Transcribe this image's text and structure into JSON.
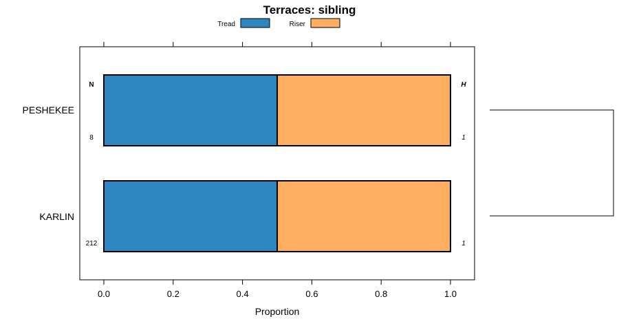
{
  "chart_data": {
    "type": "bar",
    "orientation": "horizontal",
    "stacked": true,
    "title": "Terraces: sibling",
    "xlabel": "Proportion",
    "ylabel": "",
    "xlim": [
      0,
      1
    ],
    "x_ticks": [
      "0.0",
      "0.2",
      "0.4",
      "0.6",
      "0.8",
      "1.0"
    ],
    "categories": [
      "PESHEKEE",
      "KARLIN"
    ],
    "series": [
      {
        "name": "Tread",
        "values": [
          0.5,
          0.5
        ],
        "color": "#2e86c1"
      },
      {
        "name": "Riser",
        "values": [
          0.5,
          0.5
        ],
        "color": "#fdae61"
      }
    ],
    "legend_position": "top",
    "n_header": "N",
    "h_header": "H",
    "n_values": [
      "8",
      "212"
    ],
    "h_values": [
      "1",
      "1"
    ],
    "dendrogram": "single-merge"
  }
}
